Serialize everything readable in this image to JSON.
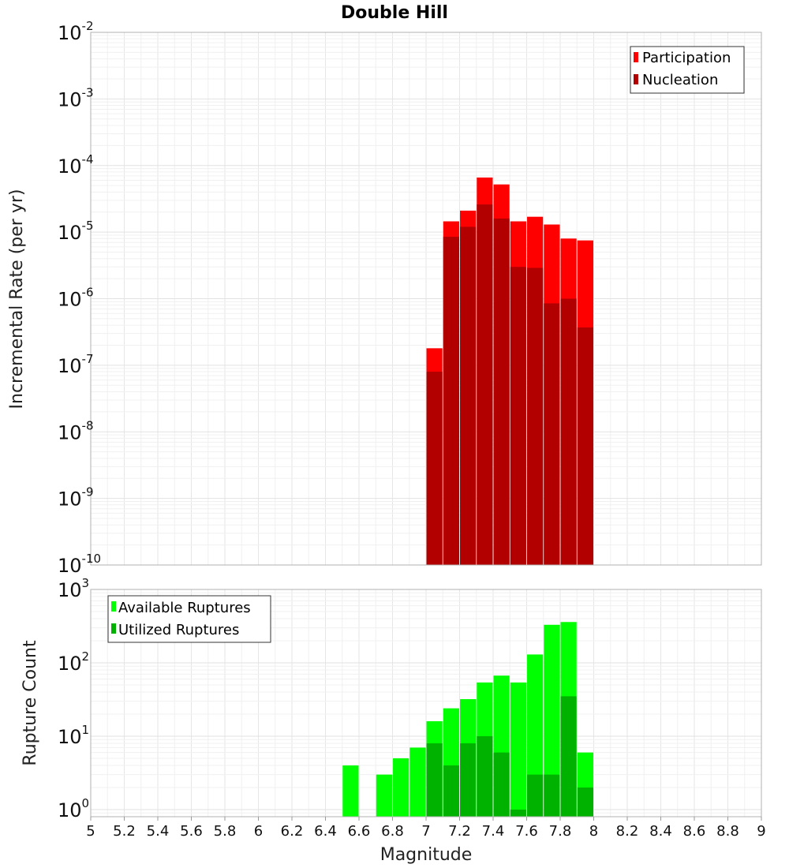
{
  "figure": {
    "title": "Double Hill",
    "xlabel": "Magnitude"
  },
  "chart_data": [
    {
      "type": "bar",
      "ylabel": "Incremental Rate (per yr)",
      "yscale": "log",
      "xlim": [
        5,
        9
      ],
      "ylim": [
        1e-10,
        0.01
      ],
      "grid": true,
      "legend_position": "top-right",
      "x": [
        7.05,
        7.15,
        7.25,
        7.35,
        7.45,
        7.55,
        7.65,
        7.75,
        7.85,
        7.95
      ],
      "series": [
        {
          "name": "Participation",
          "color": "#ff0000",
          "values": [
            1.8e-07,
            1.45e-05,
            2.1e-05,
            6.6e-05,
            5.2e-05,
            1.45e-05,
            1.7e-05,
            1.3e-05,
            8e-06,
            7.5e-06
          ]
        },
        {
          "name": "Nucleation",
          "color": "#b20000",
          "values": [
            8e-08,
            8.5e-06,
            1.2e-05,
            2.6e-05,
            1.6e-05,
            3e-06,
            2.9e-06,
            8.5e-07,
            1e-06,
            3.7e-07
          ]
        }
      ],
      "yticks": [
        {
          "base": "10",
          "exp": "-2",
          "value": 0.01
        },
        {
          "base": "10",
          "exp": "-3",
          "value": 0.001
        },
        {
          "base": "10",
          "exp": "-4",
          "value": 0.0001
        },
        {
          "base": "10",
          "exp": "-5",
          "value": 1e-05
        },
        {
          "base": "10",
          "exp": "-6",
          "value": 1e-06
        },
        {
          "base": "10",
          "exp": "-7",
          "value": 1e-07
        },
        {
          "base": "10",
          "exp": "-8",
          "value": 1e-08
        },
        {
          "base": "10",
          "exp": "-9",
          "value": 1e-09
        },
        {
          "base": "10",
          "exp": "-10",
          "value": 1e-10
        }
      ]
    },
    {
      "type": "bar",
      "ylabel": "Rupture Count",
      "yscale": "log",
      "xlim": [
        5,
        9
      ],
      "ylim": [
        0.8,
        1000
      ],
      "grid": true,
      "legend_position": "top-left",
      "x": [
        6.55,
        6.75,
        6.85,
        6.95,
        7.05,
        7.15,
        7.25,
        7.35,
        7.45,
        7.55,
        7.65,
        7.75,
        7.85,
        7.95
      ],
      "series": [
        {
          "name": "Available Ruptures",
          "color": "#00ff00",
          "values": [
            4,
            3,
            5,
            7,
            16,
            24,
            32,
            54,
            67,
            54,
            130,
            330,
            360,
            6
          ]
        },
        {
          "name": "Utilized Ruptures",
          "color": "#00b200",
          "values": [
            0,
            0,
            0,
            0,
            8,
            4,
            8,
            10,
            6,
            1,
            3,
            3,
            35,
            2
          ]
        }
      ],
      "yticks": [
        {
          "base": "10",
          "exp": "3",
          "value": 1000
        },
        {
          "base": "10",
          "exp": "2",
          "value": 100
        },
        {
          "base": "10",
          "exp": "1",
          "value": 10
        },
        {
          "base": "10",
          "exp": "0",
          "value": 1
        }
      ]
    }
  ],
  "x_ticks": [
    "5",
    "5.2",
    "5.4",
    "5.6",
    "5.8",
    "6",
    "6.2",
    "6.4",
    "6.6",
    "6.8",
    "7",
    "7.2",
    "7.4",
    "7.6",
    "7.8",
    "8",
    "8.2",
    "8.4",
    "8.6",
    "8.8",
    "9"
  ]
}
